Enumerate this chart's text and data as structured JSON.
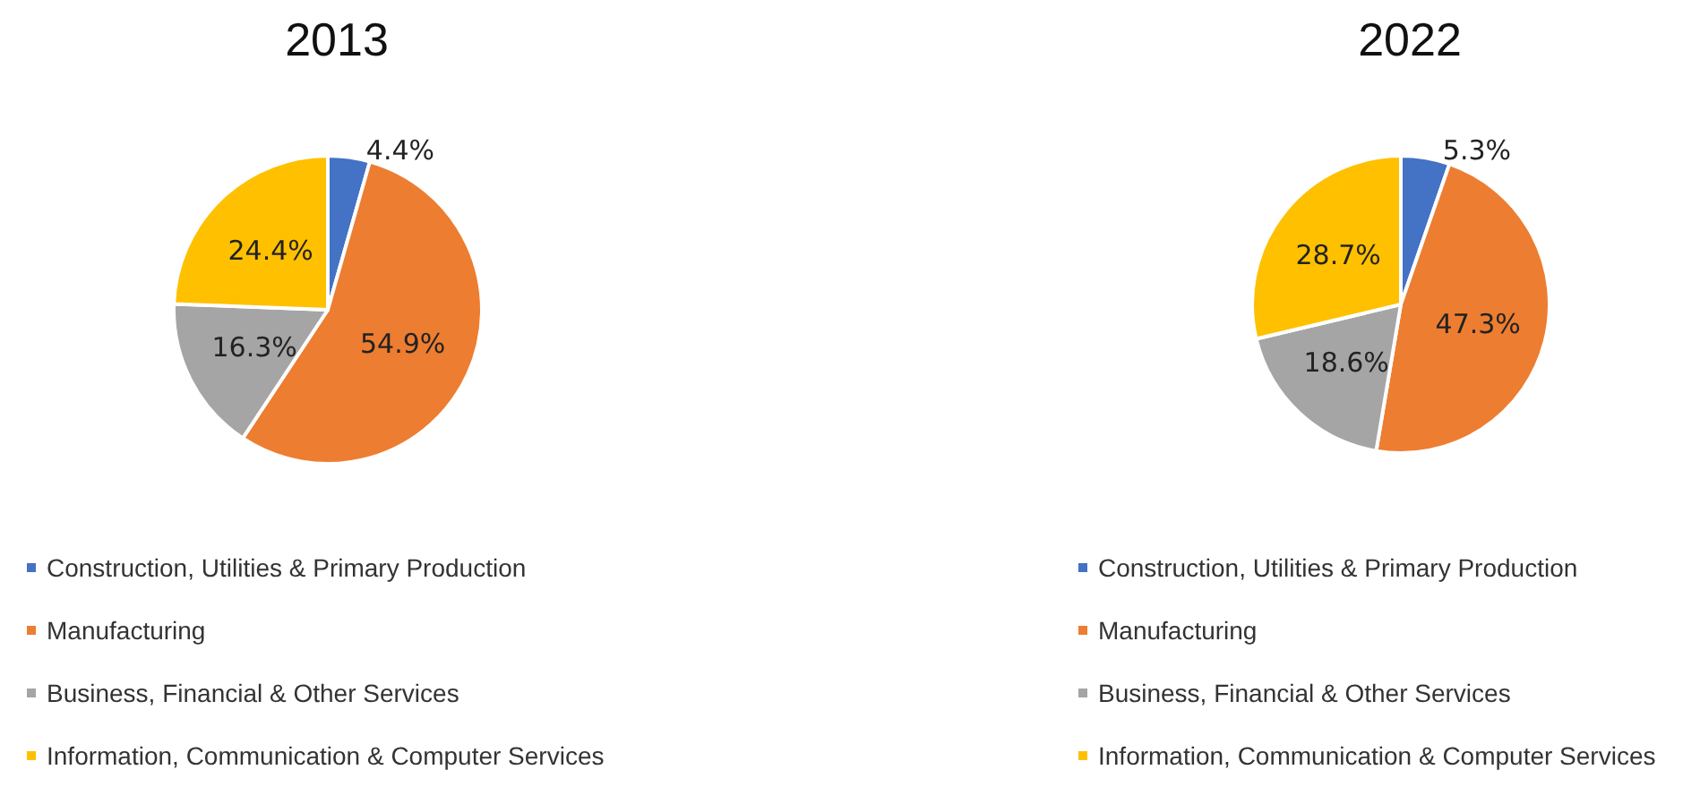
{
  "chart_data": [
    {
      "type": "pie",
      "title": "2013",
      "categories": [
        "Construction, Utilities & Primary Production",
        "Manufacturing",
        "Business, Financial & Other Services",
        "Information, Communication & Computer Services"
      ],
      "values": [
        4.4,
        54.9,
        16.3,
        24.4
      ],
      "colors": [
        "#4472c4",
        "#ed7d31",
        "#a5a5a5",
        "#ffc000"
      ],
      "value_labels": [
        "4.4%",
        "54.9%",
        "16.3%",
        "24.4%"
      ],
      "legend": "bottom"
    },
    {
      "type": "pie",
      "title": "2022",
      "categories": [
        "Construction, Utilities & Primary Production",
        "Manufacturing",
        "Business, Financial & Other Services",
        "Information, Communication & Computer Services"
      ],
      "values": [
        5.3,
        47.3,
        18.6,
        28.7
      ],
      "colors": [
        "#4472c4",
        "#ed7d31",
        "#a5a5a5",
        "#ffc000"
      ],
      "value_labels": [
        "5.3%",
        "47.3%",
        "18.6%",
        "28.7%"
      ],
      "legend": "bottom"
    }
  ]
}
